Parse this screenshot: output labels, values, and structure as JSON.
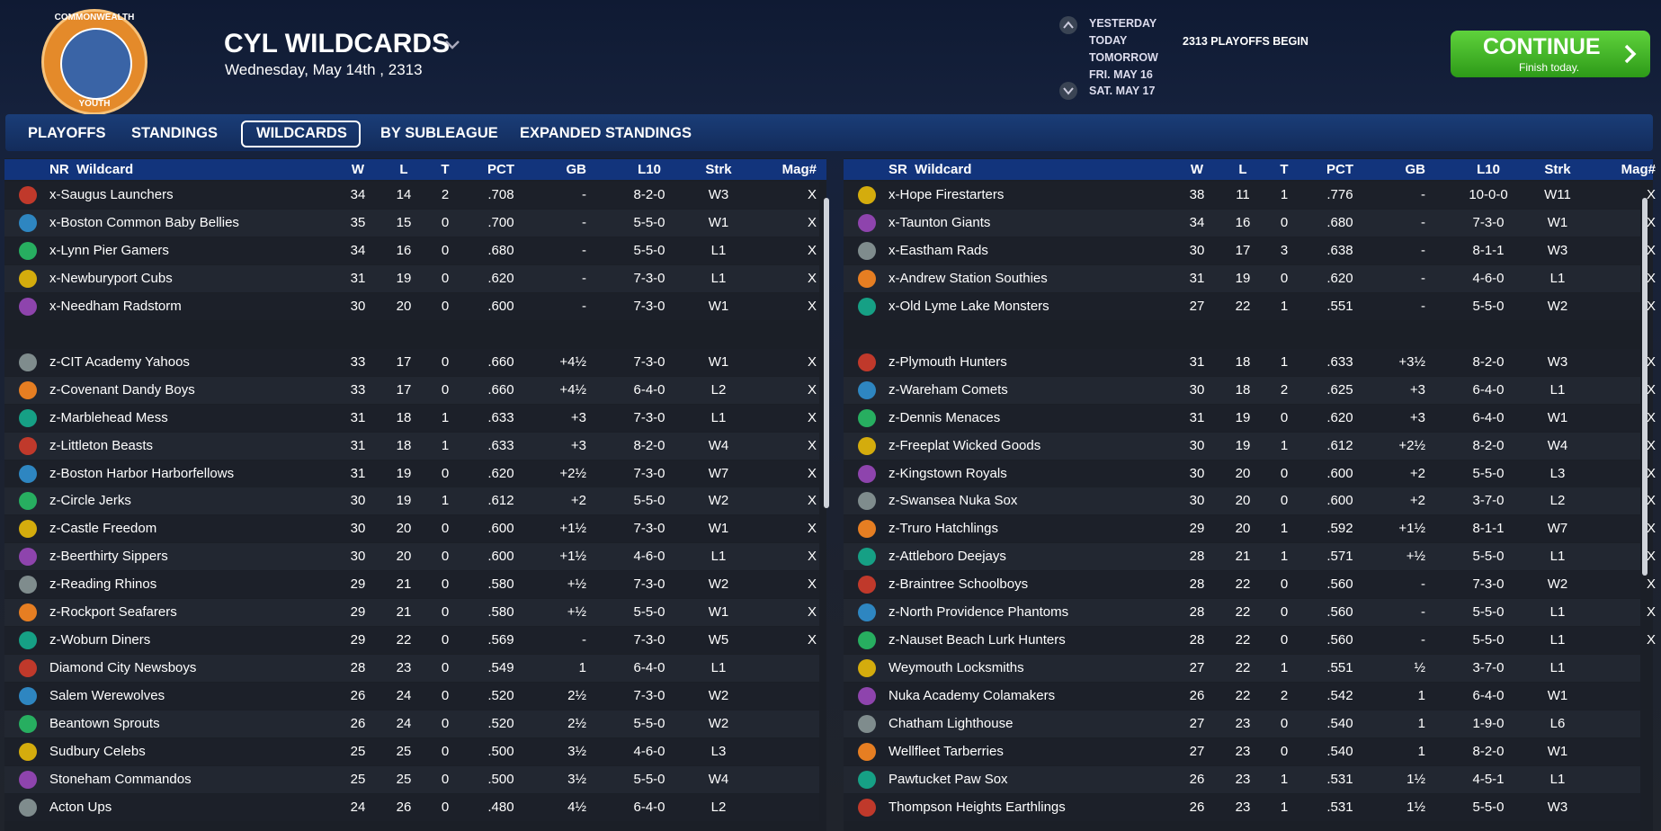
{
  "header": {
    "logo_top": "COMMONWEALTH",
    "logo_bottom": "YOUTH",
    "title": "CYL WILDCARDS",
    "date": "Wednesday, May 14th , 2313"
  },
  "schedule": [
    "YESTERDAY",
    "TODAY",
    "TOMORROW",
    "FRI. MAY 16",
    "SAT. MAY 17"
  ],
  "event": "2313 PLAYOFFS BEGIN",
  "continue": {
    "label": "CONTINUE",
    "sub": "Finish today."
  },
  "tabs": [
    "PLAYOFFS",
    "STANDINGS",
    "WILDCARDS",
    "BY SUBLEAGUE",
    "EXPANDED STANDINGS"
  ],
  "columns": [
    "W",
    "L",
    "T",
    "PCT",
    "GB",
    "L10",
    "Strk",
    "Mag#"
  ],
  "tables": [
    {
      "title": "NR  Wildcard",
      "rows": [
        [
          "x-Saugus Launchers",
          "34",
          "14",
          "2",
          ".708",
          "-",
          "8-2-0",
          "W3",
          "X"
        ],
        [
          "x-Boston Common Baby Bellies",
          "35",
          "15",
          "0",
          ".700",
          "-",
          "5-5-0",
          "W1",
          "X"
        ],
        [
          "x-Lynn Pier Gamers",
          "34",
          "16",
          "0",
          ".680",
          "-",
          "5-5-0",
          "L1",
          "X"
        ],
        [
          "x-Newburyport Cubs",
          "31",
          "19",
          "0",
          ".620",
          "-",
          "7-3-0",
          "L1",
          "X"
        ],
        [
          "x-Needham Radstorm",
          "30",
          "20",
          "0",
          ".600",
          "-",
          "7-3-0",
          "W1",
          "X"
        ],
        [
          "z-CIT Academy Yahoos",
          "33",
          "17",
          "0",
          ".660",
          "+4½",
          "7-3-0",
          "W1",
          "X"
        ],
        [
          "z-Covenant Dandy Boys",
          "33",
          "17",
          "0",
          ".660",
          "+4½",
          "6-4-0",
          "L2",
          "X"
        ],
        [
          "z-Marblehead Mess",
          "31",
          "18",
          "1",
          ".633",
          "+3",
          "7-3-0",
          "L1",
          "X"
        ],
        [
          "z-Littleton Beasts",
          "31",
          "18",
          "1",
          ".633",
          "+3",
          "8-2-0",
          "W4",
          "X"
        ],
        [
          "z-Boston Harbor Harborfellows",
          "31",
          "19",
          "0",
          ".620",
          "+2½",
          "7-3-0",
          "W7",
          "X"
        ],
        [
          "z-Circle Jerks",
          "30",
          "19",
          "1",
          ".612",
          "+2",
          "5-5-0",
          "W2",
          "X"
        ],
        [
          "z-Castle Freedom",
          "30",
          "20",
          "0",
          ".600",
          "+1½",
          "7-3-0",
          "W1",
          "X"
        ],
        [
          "z-Beerthirty Sippers",
          "30",
          "20",
          "0",
          ".600",
          "+1½",
          "4-6-0",
          "L1",
          "X"
        ],
        [
          "z-Reading Rhinos",
          "29",
          "21",
          "0",
          ".580",
          "+½",
          "7-3-0",
          "W2",
          "X"
        ],
        [
          "z-Rockport Seafarers",
          "29",
          "21",
          "0",
          ".580",
          "+½",
          "5-5-0",
          "W1",
          "X"
        ],
        [
          "z-Woburn Diners",
          "29",
          "22",
          "0",
          ".569",
          "-",
          "7-3-0",
          "W5",
          "X"
        ],
        [
          "Diamond City Newsboys",
          "28",
          "23",
          "0",
          ".549",
          "1",
          "6-4-0",
          "L1"
        ],
        [
          "Salem Werewolves",
          "26",
          "24",
          "0",
          ".520",
          "2½",
          "7-3-0",
          "W2"
        ],
        [
          "Beantown Sprouts",
          "26",
          "24",
          "0",
          ".520",
          "2½",
          "5-5-0",
          "W2"
        ],
        [
          "Sudbury Celebs",
          "25",
          "25",
          "0",
          ".500",
          "3½",
          "4-6-0",
          "L3"
        ],
        [
          "Stoneham Commandos",
          "25",
          "25",
          "0",
          ".500",
          "3½",
          "5-5-0",
          "W4"
        ],
        [
          "Acton Ups",
          "24",
          "26",
          "0",
          ".480",
          "4½",
          "6-4-0",
          "L2"
        ]
      ]
    },
    {
      "title": "SR  Wildcard",
      "rows": [
        [
          "x-Hope Firestarters",
          "38",
          "11",
          "1",
          ".776",
          "-",
          "10-0-0",
          "W11",
          "X"
        ],
        [
          "x-Taunton Giants",
          "34",
          "16",
          "0",
          ".680",
          "-",
          "7-3-0",
          "W1",
          "X"
        ],
        [
          "x-Eastham Rads",
          "30",
          "17",
          "3",
          ".638",
          "-",
          "8-1-1",
          "W3",
          "X"
        ],
        [
          "x-Andrew Station Southies",
          "31",
          "19",
          "0",
          ".620",
          "-",
          "4-6-0",
          "L1",
          "X"
        ],
        [
          "x-Old Lyme Lake Monsters",
          "27",
          "22",
          "1",
          ".551",
          "-",
          "5-5-0",
          "W2",
          "X"
        ],
        [
          "z-Plymouth Hunters",
          "31",
          "18",
          "1",
          ".633",
          "+3½",
          "8-2-0",
          "W3",
          "X"
        ],
        [
          "z-Wareham Comets",
          "30",
          "18",
          "2",
          ".625",
          "+3",
          "6-4-0",
          "L1",
          "X"
        ],
        [
          "z-Dennis Menaces",
          "31",
          "19",
          "0",
          ".620",
          "+3",
          "6-4-0",
          "W1",
          "X"
        ],
        [
          "z-Freeplat Wicked Goods",
          "30",
          "19",
          "1",
          ".612",
          "+2½",
          "8-2-0",
          "W4",
          "X"
        ],
        [
          "z-Kingstown Royals",
          "30",
          "20",
          "0",
          ".600",
          "+2",
          "5-5-0",
          "L3",
          "X"
        ],
        [
          "z-Swansea Nuka Sox",
          "30",
          "20",
          "0",
          ".600",
          "+2",
          "3-7-0",
          "L2",
          "X"
        ],
        [
          "z-Truro Hatchlings",
          "29",
          "20",
          "1",
          ".592",
          "+1½",
          "8-1-1",
          "W7",
          "X"
        ],
        [
          "z-Attleboro Deejays",
          "28",
          "21",
          "1",
          ".571",
          "+½",
          "5-5-0",
          "L1",
          "X"
        ],
        [
          "z-Braintree Schoolboys",
          "28",
          "22",
          "0",
          ".560",
          "-",
          "7-3-0",
          "W2",
          "X"
        ],
        [
          "z-North Providence Phantoms",
          "28",
          "22",
          "0",
          ".560",
          "-",
          "5-5-0",
          "L1",
          "X"
        ],
        [
          "z-Nauset Beach Lurk Hunters",
          "28",
          "22",
          "0",
          ".560",
          "-",
          "5-5-0",
          "L1",
          "X"
        ],
        [
          "Weymouth Locksmiths",
          "27",
          "22",
          "1",
          ".551",
          "½",
          "3-7-0",
          "L1"
        ],
        [
          "Nuka Academy Colamakers",
          "26",
          "22",
          "2",
          ".542",
          "1",
          "6-4-0",
          "W1"
        ],
        [
          "Chatham Lighthouse",
          "27",
          "23",
          "0",
          ".540",
          "1",
          "1-9-0",
          "L6"
        ],
        [
          "Wellfleet Tarberries",
          "27",
          "23",
          "0",
          ".540",
          "1",
          "8-2-0",
          "W1"
        ],
        [
          "Pawtucket Paw Sox",
          "26",
          "23",
          "1",
          ".531",
          "1½",
          "4-5-1",
          "L1"
        ],
        [
          "Thompson Heights Earthlings",
          "26",
          "23",
          "1",
          ".531",
          "1½",
          "5-5-0",
          "W3"
        ]
      ]
    }
  ]
}
